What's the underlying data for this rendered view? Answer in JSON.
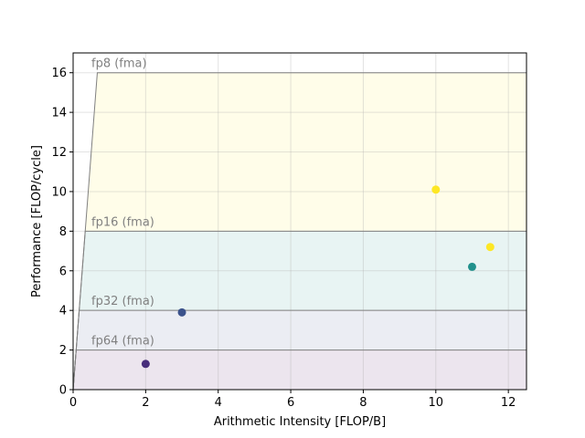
{
  "chart_data": {
    "type": "scatter",
    "title": "",
    "xlabel": "Arithmetic Intensity [FLOP/B]",
    "ylabel": "Performance [FLOP/cycle]",
    "xlim": [
      0,
      12.5
    ],
    "ylim": [
      0,
      17
    ],
    "xticks": [
      0,
      2,
      4,
      6,
      8,
      10,
      12
    ],
    "yticks": [
      0,
      2,
      4,
      6,
      8,
      10,
      12,
      14,
      16
    ],
    "grid": true,
    "memory_bandwidth_flop_per_cycle_per_flop_per_byte": 24,
    "roofs": [
      {
        "label": "fp64 (fma)",
        "peak": 2,
        "fill": "#440154"
      },
      {
        "label": "fp32 (fma)",
        "peak": 4,
        "fill": "#3b528b"
      },
      {
        "label": "fp16 (fma)",
        "peak": 8,
        "fill": "#21918c"
      },
      {
        "label": "fp8 (fma)",
        "peak": 16,
        "fill": "#fde725"
      }
    ],
    "points": [
      {
        "x": 2.0,
        "y": 1.3,
        "color": "#472d7b"
      },
      {
        "x": 3.0,
        "y": 3.9,
        "color": "#3b528b"
      },
      {
        "x": 10.0,
        "y": 10.1,
        "color": "#fde725"
      },
      {
        "x": 11.0,
        "y": 6.2,
        "color": "#21918c"
      },
      {
        "x": 11.5,
        "y": 7.2,
        "color": "#fde725"
      }
    ]
  }
}
